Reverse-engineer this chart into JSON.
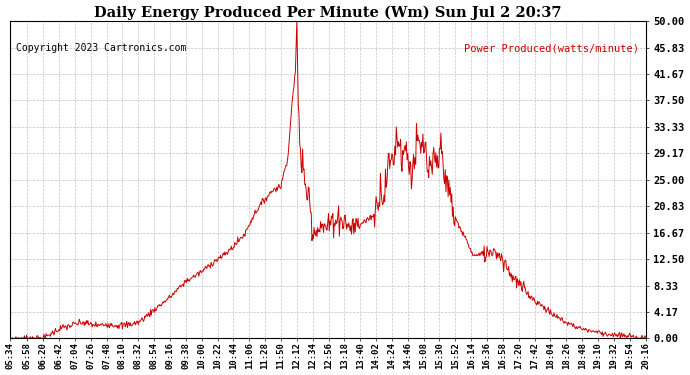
{
  "title": "Daily Energy Produced Per Minute (Wm) Sun Jul 2 20:37",
  "copyright": "Copyright 2023 Cartronics.com",
  "legend_label": "Power Produced(watts/minute)",
  "line_color": "#cc0000",
  "background_color": "#ffffff",
  "grid_color": "#bbbbbb",
  "ylim": [
    0,
    50
  ],
  "yticks": [
    0.0,
    4.17,
    8.33,
    12.5,
    16.67,
    20.83,
    25.0,
    29.17,
    33.33,
    37.5,
    41.67,
    45.83,
    50.0
  ],
  "ytick_labels": [
    "0.00",
    "4.17",
    "8.33",
    "12.50",
    "16.67",
    "20.83",
    "25.00",
    "29.17",
    "33.33",
    "37.50",
    "41.67",
    "45.83",
    "50.00"
  ],
  "xtick_labels": [
    "05:34",
    "05:58",
    "06:20",
    "06:42",
    "07:04",
    "07:26",
    "07:48",
    "08:10",
    "08:32",
    "08:54",
    "09:16",
    "09:38",
    "10:00",
    "10:22",
    "10:44",
    "11:06",
    "11:28",
    "11:50",
    "12:12",
    "12:34",
    "12:56",
    "13:18",
    "13:40",
    "14:02",
    "14:24",
    "14:46",
    "15:08",
    "15:30",
    "15:52",
    "16:14",
    "16:36",
    "16:58",
    "17:20",
    "17:42",
    "18:04",
    "18:26",
    "18:48",
    "19:10",
    "19:32",
    "19:54",
    "20:16"
  ]
}
